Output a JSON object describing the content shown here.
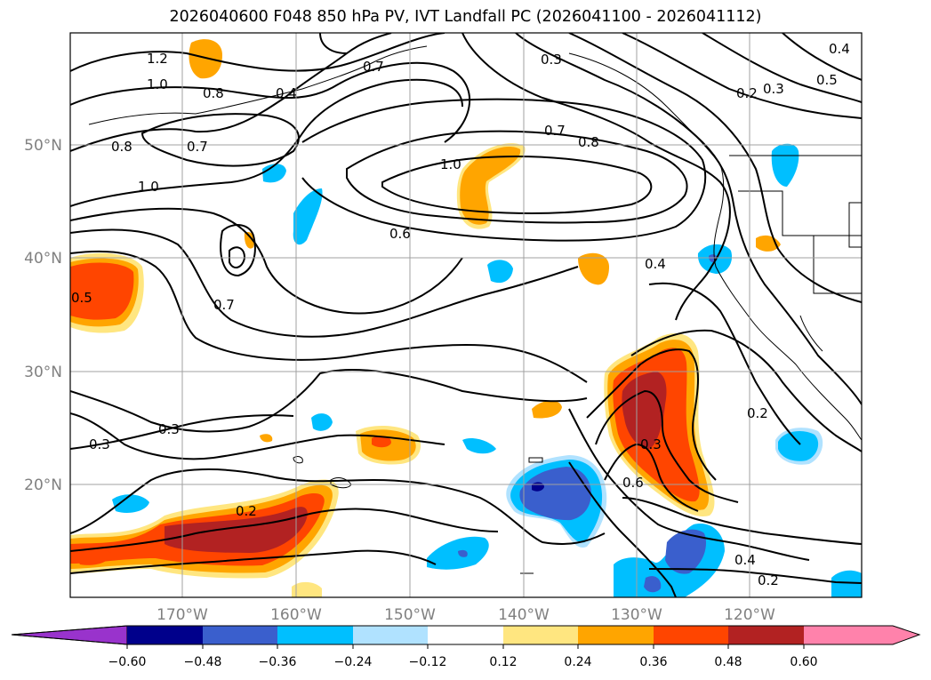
{
  "title": "2026040600 F048 850 hPa PV, IVT Landfall PC (2026041100 - 2026041112)",
  "map": {
    "lon_labels": [
      "170°W",
      "160°W",
      "150°W",
      "140°W",
      "130°W",
      "120°W"
    ],
    "lat_labels": [
      "50°N",
      "40°N",
      "30°N",
      "20°N"
    ],
    "contour_labels": [
      "1.2",
      "1.0",
      "0.8",
      "0.4",
      "0.7",
      "0.3",
      "0.4",
      "0.5",
      "0.3",
      "0.2",
      "0.8",
      "0.7",
      "1.0",
      "1.0",
      "0.7",
      "0.8",
      "0.6",
      "0.7",
      "0.5",
      "0.4",
      "0.3",
      "0.3",
      "0.6",
      "0.3",
      "0.2",
      "0.2",
      "0.4",
      "0.2"
    ]
  },
  "colorbar": {
    "ticks": [
      "−0.60",
      "−0.48",
      "−0.36",
      "−0.24",
      "−0.12",
      "0.12",
      "0.24",
      "0.36",
      "0.48",
      "0.60"
    ],
    "colors": [
      "#9933cc",
      "#00008b",
      "#3a5fcd",
      "#00bfff",
      "#b0e2ff",
      "#ffffff",
      "#ffe680",
      "#ffa500",
      "#ff4500",
      "#b22222",
      "#ff82ab"
    ]
  }
}
